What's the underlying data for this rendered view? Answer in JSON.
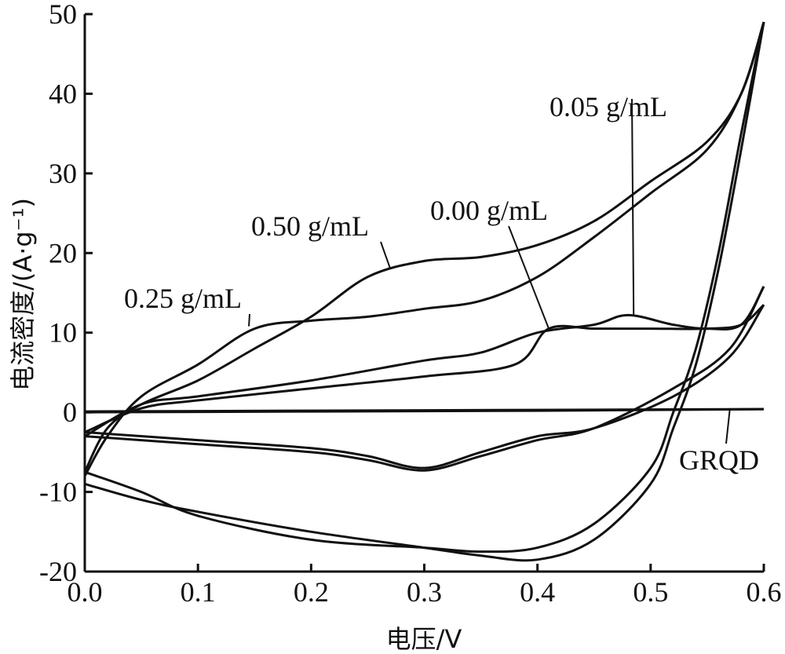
{
  "chart_data": {
    "type": "line",
    "xlabel": "电压/V",
    "ylabel": "电流密度/(A·g⁻¹)",
    "xlim": [
      0.0,
      0.6
    ],
    "ylim": [
      -20,
      50
    ],
    "x_ticks": [
      "0.0",
      "0.1",
      "0.2",
      "0.3",
      "0.4",
      "0.5",
      "0.6"
    ],
    "y_ticks": [
      "-20",
      "-10",
      "0",
      "10",
      "20",
      "30",
      "40",
      "50"
    ],
    "grid": false,
    "legend": "none",
    "series": [
      {
        "name": "0.05 g/mL",
        "anodic": [
          [
            0.0,
            -3
          ],
          [
            0.05,
            1
          ],
          [
            0.1,
            2
          ],
          [
            0.2,
            4
          ],
          [
            0.3,
            6.5
          ],
          [
            0.35,
            7.5
          ],
          [
            0.4,
            10
          ],
          [
            0.45,
            11
          ],
          [
            0.48,
            12.2
          ],
          [
            0.52,
            11
          ],
          [
            0.55,
            10.5
          ],
          [
            0.58,
            11
          ],
          [
            0.6,
            15.8
          ]
        ],
        "cathodic": [
          [
            0.6,
            15.8
          ],
          [
            0.57,
            8
          ],
          [
            0.52,
            3
          ],
          [
            0.45,
            -2
          ],
          [
            0.4,
            -3.5
          ],
          [
            0.35,
            -5.5
          ],
          [
            0.3,
            -7.3
          ],
          [
            0.25,
            -6
          ],
          [
            0.2,
            -5
          ],
          [
            0.1,
            -4
          ],
          [
            0.0,
            -3
          ]
        ]
      },
      {
        "name": "0.00 g/mL",
        "anodic": [
          [
            0.0,
            -2.5
          ],
          [
            0.05,
            0.5
          ],
          [
            0.1,
            1.5
          ],
          [
            0.2,
            3
          ],
          [
            0.3,
            4.5
          ],
          [
            0.38,
            6
          ],
          [
            0.41,
            10.5
          ],
          [
            0.45,
            10.5
          ],
          [
            0.5,
            10.5
          ],
          [
            0.55,
            10.5
          ],
          [
            0.58,
            11
          ],
          [
            0.6,
            13.5
          ]
        ],
        "cathodic": [
          [
            0.6,
            13.5
          ],
          [
            0.57,
            7
          ],
          [
            0.52,
            2
          ],
          [
            0.45,
            -2
          ],
          [
            0.4,
            -3
          ],
          [
            0.35,
            -5
          ],
          [
            0.3,
            -7
          ],
          [
            0.25,
            -5.5
          ],
          [
            0.2,
            -4.5
          ],
          [
            0.1,
            -3.5
          ],
          [
            0.0,
            -2.5
          ]
        ]
      },
      {
        "name": "0.50 g/mL",
        "anodic": [
          [
            0.0,
            -7.5
          ],
          [
            0.02,
            -2
          ],
          [
            0.05,
            1
          ],
          [
            0.1,
            4
          ],
          [
            0.15,
            8
          ],
          [
            0.2,
            12
          ],
          [
            0.25,
            17
          ],
          [
            0.3,
            19
          ],
          [
            0.35,
            19.5
          ],
          [
            0.4,
            21
          ],
          [
            0.45,
            24
          ],
          [
            0.5,
            29
          ],
          [
            0.55,
            34
          ],
          [
            0.58,
            40
          ],
          [
            0.6,
            49
          ]
        ],
        "cathodic": [
          [
            0.6,
            49
          ],
          [
            0.58,
            35
          ],
          [
            0.56,
            20
          ],
          [
            0.54,
            8
          ],
          [
            0.52,
            0
          ],
          [
            0.5,
            -7
          ],
          [
            0.45,
            -14
          ],
          [
            0.4,
            -17
          ],
          [
            0.35,
            -17.5
          ],
          [
            0.3,
            -17
          ],
          [
            0.2,
            -16
          ],
          [
            0.1,
            -13
          ],
          [
            0.05,
            -10
          ],
          [
            0.0,
            -7.5
          ]
        ]
      },
      {
        "name": "0.25 g/mL",
        "anodic": [
          [
            0.0,
            -8
          ],
          [
            0.02,
            -3
          ],
          [
            0.05,
            2
          ],
          [
            0.1,
            6
          ],
          [
            0.15,
            10.5
          ],
          [
            0.2,
            11.5
          ],
          [
            0.25,
            12
          ],
          [
            0.3,
            13
          ],
          [
            0.35,
            14
          ],
          [
            0.4,
            17
          ],
          [
            0.45,
            22
          ],
          [
            0.5,
            27.5
          ],
          [
            0.55,
            33
          ],
          [
            0.58,
            40
          ],
          [
            0.6,
            49
          ]
        ],
        "cathodic": [
          [
            0.6,
            49
          ],
          [
            0.58,
            33
          ],
          [
            0.56,
            18
          ],
          [
            0.54,
            6
          ],
          [
            0.52,
            -2
          ],
          [
            0.5,
            -9
          ],
          [
            0.45,
            -16
          ],
          [
            0.4,
            -18.5
          ],
          [
            0.35,
            -18
          ],
          [
            0.3,
            -17
          ],
          [
            0.2,
            -15
          ],
          [
            0.1,
            -12.5
          ],
          [
            0.05,
            -11
          ],
          [
            0.0,
            -9
          ]
        ]
      },
      {
        "name": "GRQD",
        "anodic": [
          [
            0.0,
            0.1
          ],
          [
            0.2,
            0.2
          ],
          [
            0.4,
            0.3
          ],
          [
            0.6,
            0.4
          ]
        ],
        "cathodic": [
          [
            0.6,
            0.4
          ],
          [
            0.4,
            0.2
          ],
          [
            0.2,
            0.1
          ],
          [
            0.0,
            0.0
          ]
        ]
      }
    ],
    "annotations": [
      {
        "text": "0.05 g/mL",
        "x": 0.485,
        "y": 12.2
      },
      {
        "text": "0.00 g/mL",
        "x": 0.41,
        "y": 10.5
      },
      {
        "text": "0.50 g/mL",
        "x": 0.27,
        "y": 18.0
      },
      {
        "text": "0.25 g/mL",
        "x": 0.145,
        "y": 10.8
      },
      {
        "text": "GRQD",
        "x": 0.57,
        "y": 0.4
      }
    ]
  }
}
